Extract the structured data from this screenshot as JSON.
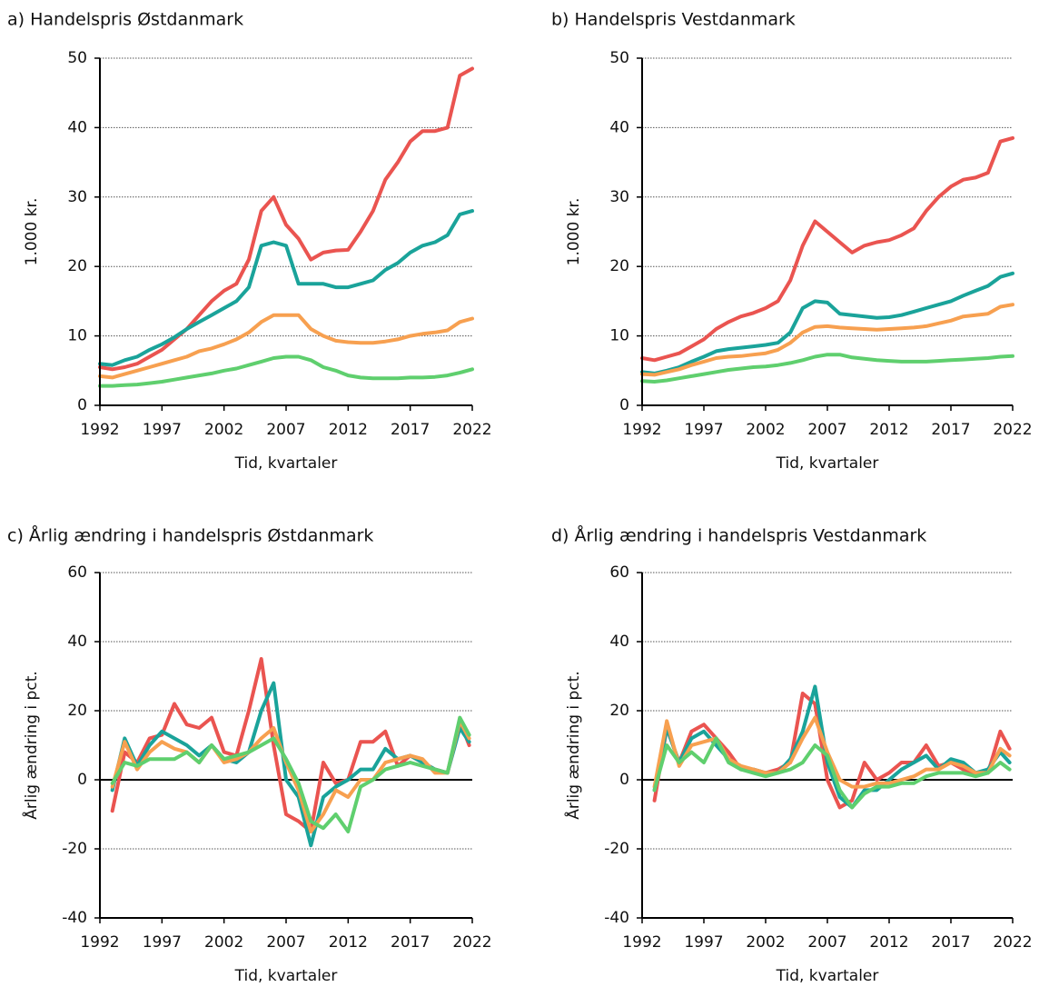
{
  "chart_data": [
    {
      "type": "line",
      "title": "a) Handelspris Østdanmark",
      "xlabel": "Tid, kvartaler",
      "ylabel": "1.000 kr.",
      "x": [
        1992,
        1993,
        1994,
        1995,
        1996,
        1997,
        1998,
        1999,
        2000,
        2001,
        2002,
        2003,
        2004,
        2005,
        2006,
        2007,
        2008,
        2009,
        2010,
        2011,
        2012,
        2013,
        2014,
        2015,
        2016,
        2017,
        2018,
        2019,
        2020,
        2021,
        2022
      ],
      "xlim": [
        1992,
        2022
      ],
      "xticks": [
        1992,
        1997,
        2002,
        2007,
        2012,
        2017,
        2022
      ],
      "ylim": [
        0,
        50
      ],
      "yticks": [
        0,
        10,
        20,
        30,
        40,
        50
      ],
      "grid": true,
      "series": [
        {
          "color": "#ea5450",
          "values": [
            5.5,
            5.2,
            5.5,
            6,
            7,
            8,
            9.5,
            11,
            13,
            15,
            16.5,
            17.5,
            21,
            28,
            30,
            26,
            24,
            21,
            22,
            22.3,
            22.4,
            25,
            28,
            32.5,
            35,
            38,
            39.5,
            39.5,
            40,
            47.5,
            48.5
          ]
        },
        {
          "color": "#1aa39a",
          "values": [
            6,
            5.8,
            6.5,
            7,
            8,
            8.8,
            9.8,
            11,
            12,
            13,
            14,
            15,
            17,
            23,
            23.5,
            23,
            17.5,
            17.5,
            17.5,
            17,
            17,
            17.5,
            18,
            19.5,
            20.5,
            22,
            23,
            23.5,
            24.5,
            27.5,
            28
          ]
        },
        {
          "color": "#f7a050",
          "values": [
            4.2,
            4,
            4.5,
            5,
            5.5,
            6,
            6.5,
            7,
            7.8,
            8.2,
            8.8,
            9.5,
            10.5,
            12,
            13,
            13,
            13,
            11,
            10,
            9.3,
            9.1,
            9,
            9,
            9.2,
            9.5,
            10,
            10.3,
            10.5,
            10.8,
            12,
            12.5
          ]
        },
        {
          "color": "#5fcf6e",
          "values": [
            2.8,
            2.8,
            2.9,
            3,
            3.2,
            3.4,
            3.7,
            4,
            4.3,
            4.6,
            5,
            5.3,
            5.8,
            6.3,
            6.8,
            7,
            7,
            6.5,
            5.5,
            5,
            4.3,
            4,
            3.9,
            3.9,
            3.9,
            4,
            4,
            4.1,
            4.3,
            4.7,
            5.2
          ]
        }
      ]
    },
    {
      "type": "line",
      "title": "b) Handelspris Vestdanmark",
      "xlabel": "Tid, kvartaler",
      "ylabel": "1.000 kr.",
      "x": [
        1992,
        1993,
        1994,
        1995,
        1996,
        1997,
        1998,
        1999,
        2000,
        2001,
        2002,
        2003,
        2004,
        2005,
        2006,
        2007,
        2008,
        2009,
        2010,
        2011,
        2012,
        2013,
        2014,
        2015,
        2016,
        2017,
        2018,
        2019,
        2020,
        2021,
        2022
      ],
      "xlim": [
        1992,
        2022
      ],
      "xticks": [
        1992,
        1997,
        2002,
        2007,
        2012,
        2017,
        2022
      ],
      "ylim": [
        0,
        50
      ],
      "yticks": [
        0,
        10,
        20,
        30,
        40,
        50
      ],
      "grid": true,
      "series": [
        {
          "color": "#ea5450",
          "values": [
            6.8,
            6.5,
            7,
            7.5,
            8.5,
            9.5,
            11,
            12,
            12.8,
            13.3,
            14,
            15,
            18,
            23,
            26.5,
            25,
            23.5,
            22,
            23,
            23.5,
            23.8,
            24.5,
            25.5,
            28,
            30,
            31.5,
            32.5,
            32.8,
            33.5,
            38,
            38.5
          ]
        },
        {
          "color": "#1aa39a",
          "values": [
            4.8,
            4.6,
            5,
            5.5,
            6.3,
            7,
            7.8,
            8.1,
            8.3,
            8.5,
            8.7,
            9,
            10.5,
            14,
            15,
            14.8,
            13.2,
            13,
            12.8,
            12.6,
            12.7,
            13,
            13.5,
            14,
            14.5,
            15,
            15.8,
            16.5,
            17.2,
            18.5,
            19
          ]
        },
        {
          "color": "#f7a050",
          "values": [
            4.5,
            4.4,
            4.8,
            5.2,
            5.8,
            6.3,
            6.8,
            7,
            7.1,
            7.3,
            7.5,
            8,
            9,
            10.5,
            11.3,
            11.4,
            11.2,
            11.1,
            11,
            10.9,
            11,
            11.1,
            11.2,
            11.4,
            11.8,
            12.2,
            12.8,
            13,
            13.2,
            14.2,
            14.5
          ]
        },
        {
          "color": "#5fcf6e",
          "values": [
            3.5,
            3.4,
            3.6,
            3.9,
            4.2,
            4.5,
            4.8,
            5.1,
            5.3,
            5.5,
            5.6,
            5.8,
            6.1,
            6.5,
            7,
            7.3,
            7.3,
            6.9,
            6.7,
            6.5,
            6.4,
            6.3,
            6.3,
            6.3,
            6.4,
            6.5,
            6.6,
            6.7,
            6.8,
            7,
            7.1
          ]
        }
      ]
    },
    {
      "type": "line",
      "title": "c) Årlig ændring i handelspris Østdanmark",
      "xlabel": "Tid, kvartaler",
      "ylabel": "Årlig ændring i pct.",
      "x": [
        1993,
        1994,
        1995,
        1996,
        1997,
        1998,
        1999,
        2000,
        2001,
        2002,
        2003,
        2004,
        2005,
        2006,
        2007,
        2008,
        2009,
        2010,
        2011,
        2012,
        2013,
        2014,
        2015,
        2016,
        2017,
        2018,
        2019,
        2020,
        2021,
        2021.75
      ],
      "xlim": [
        1992,
        2022
      ],
      "xticks": [
        1992,
        1997,
        2002,
        2007,
        2012,
        2017,
        2022
      ],
      "ylim": [
        -40,
        60
      ],
      "yticks": [
        -40,
        -20,
        0,
        20,
        40,
        60
      ],
      "grid": true,
      "series": [
        {
          "color": "#ea5450",
          "values": [
            -9,
            8,
            5,
            12,
            13,
            22,
            16,
            15,
            18,
            8,
            7,
            20,
            35,
            10,
            -10,
            -12,
            -15,
            5,
            -1,
            0,
            11,
            11,
            14,
            4,
            7,
            5,
            3,
            2,
            17,
            10
          ]
        },
        {
          "color": "#1aa39a",
          "values": [
            -3,
            12,
            4,
            10,
            14,
            12,
            10,
            7,
            10,
            6,
            5,
            8,
            20,
            28,
            0,
            -5,
            -19,
            -5,
            -2,
            0,
            3,
            3,
            9,
            6,
            7,
            5,
            3,
            2,
            15,
            11
          ]
        },
        {
          "color": "#f7a050",
          "values": [
            -2,
            11,
            3,
            8,
            11,
            9,
            8,
            5,
            10,
            5,
            6,
            8,
            12,
            15,
            5,
            -3,
            -15,
            -10,
            -3,
            -5,
            0,
            0,
            5,
            6,
            7,
            6,
            2,
            2,
            17,
            12
          ]
        },
        {
          "color": "#5fcf6e",
          "values": [
            -1,
            5,
            4,
            6,
            6,
            6,
            8,
            5,
            10,
            6,
            7,
            8,
            10,
            12,
            6,
            -1,
            -12,
            -14,
            -10,
            -15,
            -2,
            0,
            3,
            4,
            5,
            4,
            3,
            2,
            18,
            13
          ]
        }
      ]
    },
    {
      "type": "line",
      "title": "d) Årlig ændring i handelspris Vestdanmark",
      "xlabel": "Tid, kvartaler",
      "ylabel": "Årlig ændring i pct.",
      "x": [
        1993,
        1994,
        1995,
        1996,
        1997,
        1998,
        1999,
        2000,
        2001,
        2002,
        2003,
        2004,
        2005,
        2006,
        2007,
        2008,
        2009,
        2010,
        2011,
        2012,
        2013,
        2014,
        2015,
        2016,
        2017,
        2018,
        2019,
        2020,
        2021,
        2021.75
      ],
      "xlim": [
        1992,
        2022
      ],
      "xticks": [
        1992,
        1997,
        2002,
        2007,
        2012,
        2017,
        2022
      ],
      "ylim": [
        -40,
        60
      ],
      "yticks": [
        -40,
        -20,
        0,
        20,
        40,
        60
      ],
      "grid": true,
      "series": [
        {
          "color": "#ea5450",
          "values": [
            -6,
            15,
            5,
            14,
            16,
            12,
            8,
            3,
            3,
            2,
            3,
            5,
            25,
            22,
            0,
            -8,
            -6,
            5,
            0,
            2,
            5,
            5,
            10,
            4,
            5,
            3,
            2,
            2,
            14,
            9
          ]
        },
        {
          "color": "#1aa39a",
          "values": [
            -3,
            15,
            5,
            12,
            14,
            10,
            6,
            3,
            3,
            2,
            2,
            6,
            14,
            27,
            5,
            -5,
            -8,
            -3,
            -3,
            0,
            3,
            5,
            7,
            3,
            6,
            5,
            2,
            3,
            8,
            5
          ]
        },
        {
          "color": "#f7a050",
          "values": [
            -2,
            17,
            4,
            10,
            11,
            12,
            6,
            4,
            3,
            2,
            2,
            5,
            12,
            18,
            8,
            0,
            -2,
            -2,
            -1,
            -1,
            0,
            1,
            3,
            3,
            5,
            4,
            2,
            2,
            9,
            7
          ]
        },
        {
          "color": "#5fcf6e",
          "values": [
            -3,
            10,
            5,
            8,
            5,
            12,
            5,
            3,
            2,
            1,
            2,
            3,
            5,
            10,
            7,
            -3,
            -8,
            -4,
            -2,
            -2,
            -1,
            -1,
            1,
            2,
            2,
            2,
            1,
            2,
            5,
            3
          ]
        }
      ]
    }
  ]
}
